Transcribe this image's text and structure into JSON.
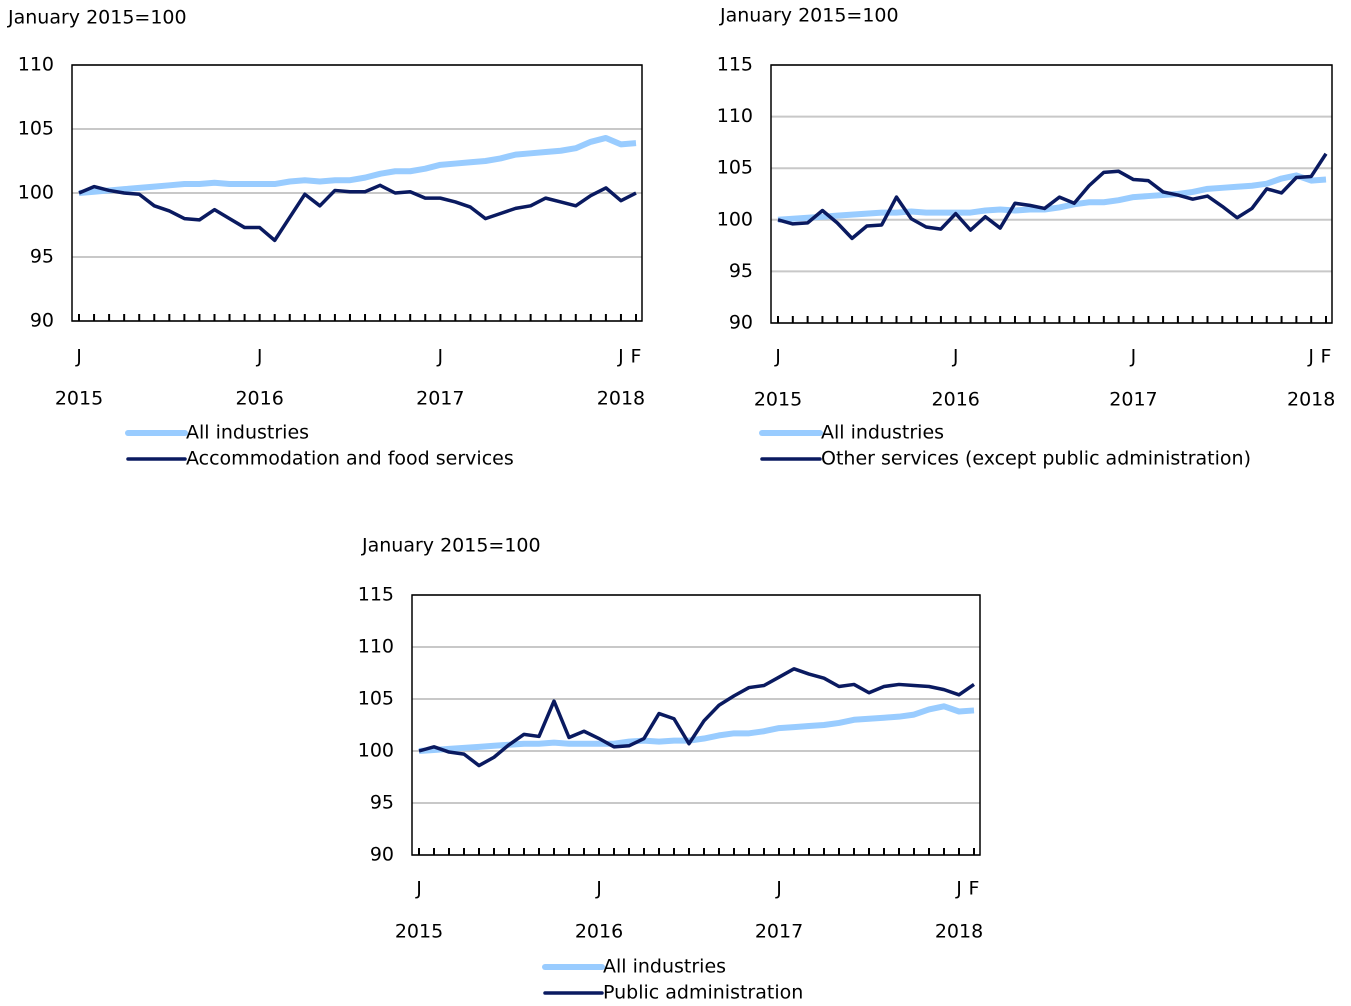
{
  "chart_data": [
    {
      "type": "line",
      "y_axis_title": "January 2015=100",
      "categories": [
        "J",
        null,
        null,
        null,
        null,
        null,
        null,
        null,
        null,
        null,
        null,
        null,
        "J",
        null,
        null,
        null,
        null,
        null,
        null,
        null,
        null,
        null,
        null,
        null,
        "J",
        null,
        null,
        null,
        null,
        null,
        null,
        null,
        null,
        null,
        null,
        null,
        "J",
        "F"
      ],
      "years": [
        "2015",
        null,
        null,
        null,
        null,
        null,
        null,
        null,
        null,
        null,
        null,
        null,
        "2016",
        null,
        null,
        null,
        null,
        null,
        null,
        null,
        null,
        null,
        null,
        null,
        "2017",
        null,
        null,
        null,
        null,
        null,
        null,
        null,
        null,
        null,
        null,
        null,
        "2018",
        null
      ],
      "ylim": [
        90,
        110
      ],
      "yticks": [
        90,
        95,
        100,
        105,
        110
      ],
      "grid": true,
      "series": [
        {
          "name": "All industries",
          "color": "#99ccff",
          "values": [
            100,
            100.1,
            100.2,
            100.3,
            100.4,
            100.5,
            100.6,
            100.7,
            100.7,
            100.8,
            100.7,
            100.7,
            100.7,
            100.7,
            100.9,
            101.0,
            100.9,
            101.0,
            101.0,
            101.2,
            101.5,
            101.7,
            101.7,
            101.9,
            102.2,
            102.3,
            102.4,
            102.5,
            102.7,
            103.0,
            103.1,
            103.2,
            103.3,
            103.5,
            104.0,
            104.3,
            103.8,
            103.9
          ]
        },
        {
          "name": "Accommodation and food services",
          "color": "#0a1a60",
          "values": [
            100.0,
            100.5,
            100.2,
            100.0,
            99.9,
            99.0,
            98.6,
            98.0,
            97.9,
            98.7,
            98.0,
            97.3,
            97.3,
            96.3,
            98.1,
            99.9,
            99.0,
            100.2,
            100.1,
            100.1,
            100.6,
            100.0,
            100.1,
            99.6,
            99.6,
            99.3,
            98.9,
            98.0,
            98.4,
            98.8,
            99.0,
            99.6,
            99.3,
            99.0,
            99.8,
            100.4,
            99.4,
            100.0
          ]
        }
      ]
    },
    {
      "type": "line",
      "y_axis_title": "January 2015=100",
      "categories": [
        "J",
        null,
        null,
        null,
        null,
        null,
        null,
        null,
        null,
        null,
        null,
        null,
        "J",
        null,
        null,
        null,
        null,
        null,
        null,
        null,
        null,
        null,
        null,
        null,
        "J",
        null,
        null,
        null,
        null,
        null,
        null,
        null,
        null,
        null,
        null,
        null,
        "J",
        "F"
      ],
      "years": [
        "2015",
        null,
        null,
        null,
        null,
        null,
        null,
        null,
        null,
        null,
        null,
        null,
        "2016",
        null,
        null,
        null,
        null,
        null,
        null,
        null,
        null,
        null,
        null,
        null,
        "2017",
        null,
        null,
        null,
        null,
        null,
        null,
        null,
        null,
        null,
        null,
        null,
        "2018",
        null
      ],
      "ylim": [
        90,
        115
      ],
      "yticks": [
        90,
        95,
        100,
        105,
        110,
        115
      ],
      "grid": true,
      "series": [
        {
          "name": "All industries",
          "color": "#99ccff",
          "values": [
            100,
            100.1,
            100.2,
            100.3,
            100.4,
            100.5,
            100.6,
            100.7,
            100.7,
            100.8,
            100.7,
            100.7,
            100.7,
            100.7,
            100.9,
            101.0,
            100.9,
            101.0,
            101.0,
            101.2,
            101.5,
            101.7,
            101.7,
            101.9,
            102.2,
            102.3,
            102.4,
            102.5,
            102.7,
            103.0,
            103.1,
            103.2,
            103.3,
            103.5,
            104.0,
            104.3,
            103.8,
            103.9
          ]
        },
        {
          "name": "Other services (except public administration)",
          "color": "#0a1a60",
          "values": [
            100.0,
            99.6,
            99.7,
            100.9,
            99.7,
            98.2,
            99.4,
            99.5,
            102.2,
            100.1,
            99.3,
            99.1,
            100.6,
            99.0,
            100.3,
            99.2,
            101.6,
            101.4,
            101.1,
            102.2,
            101.6,
            103.3,
            104.6,
            104.7,
            103.9,
            103.8,
            102.7,
            102.4,
            102.0,
            102.3,
            101.3,
            100.2,
            101.1,
            103.0,
            102.6,
            104.1,
            104.2,
            106.4
          ]
        }
      ]
    },
    {
      "type": "line",
      "y_axis_title": "January 2015=100",
      "categories": [
        "J",
        null,
        null,
        null,
        null,
        null,
        null,
        null,
        null,
        null,
        null,
        null,
        "J",
        null,
        null,
        null,
        null,
        null,
        null,
        null,
        null,
        null,
        null,
        null,
        "J",
        null,
        null,
        null,
        null,
        null,
        null,
        null,
        null,
        null,
        null,
        null,
        "J",
        "F"
      ],
      "years": [
        "2015",
        null,
        null,
        null,
        null,
        null,
        null,
        null,
        null,
        null,
        null,
        null,
        "2016",
        null,
        null,
        null,
        null,
        null,
        null,
        null,
        null,
        null,
        null,
        null,
        "2017",
        null,
        null,
        null,
        null,
        null,
        null,
        null,
        null,
        null,
        null,
        null,
        "2018",
        null
      ],
      "ylim": [
        90,
        115
      ],
      "yticks": [
        90,
        95,
        100,
        105,
        110,
        115
      ],
      "grid": true,
      "series": [
        {
          "name": "All industries",
          "color": "#99ccff",
          "values": [
            100,
            100.1,
            100.2,
            100.3,
            100.4,
            100.5,
            100.6,
            100.7,
            100.7,
            100.8,
            100.7,
            100.7,
            100.7,
            100.7,
            100.9,
            101.0,
            100.9,
            101.0,
            101.0,
            101.2,
            101.5,
            101.7,
            101.7,
            101.9,
            102.2,
            102.3,
            102.4,
            102.5,
            102.7,
            103.0,
            103.1,
            103.2,
            103.3,
            103.5,
            104.0,
            104.3,
            103.8,
            103.9
          ]
        },
        {
          "name": "Public administration",
          "color": "#0a1a60",
          "values": [
            100.0,
            100.4,
            99.9,
            99.7,
            98.6,
            99.4,
            100.6,
            101.6,
            101.4,
            104.8,
            101.3,
            101.9,
            101.2,
            100.4,
            100.5,
            101.2,
            103.6,
            103.1,
            100.7,
            102.9,
            104.4,
            105.3,
            106.1,
            106.3,
            107.1,
            107.9,
            107.4,
            107.0,
            106.2,
            106.4,
            105.6,
            106.2,
            106.4,
            106.3,
            106.2,
            105.9,
            105.4,
            106.4
          ]
        }
      ]
    }
  ]
}
